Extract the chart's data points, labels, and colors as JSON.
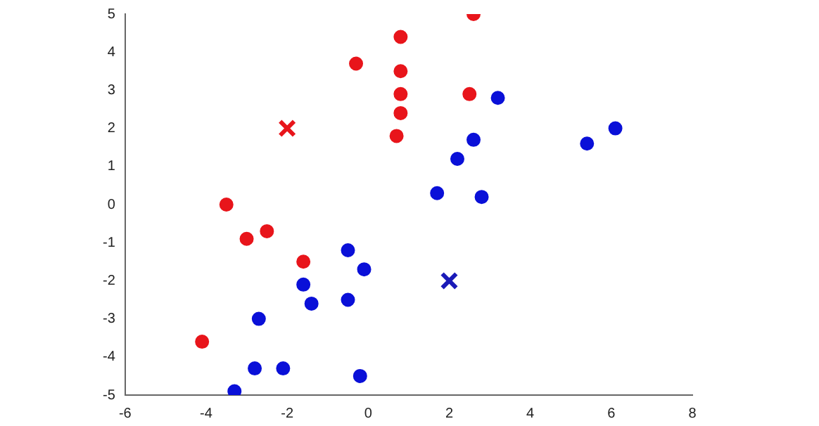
{
  "chart_data": {
    "type": "scatter",
    "xlim": [
      -6,
      8
    ],
    "xticks": [
      -6,
      -4,
      -2,
      0,
      2,
      4,
      6,
      8
    ],
    "ylim": [
      -5,
      5
    ],
    "yticks": [
      -5,
      -4,
      -3,
      -2,
      -1,
      0,
      1,
      2,
      3,
      4,
      5
    ],
    "grid": false,
    "legend": false,
    "series": [
      {
        "color": "#e8151b",
        "marker": "circle",
        "x": [
          2.6,
          0.8,
          -0.3,
          0.8,
          0.8,
          0.8,
          0.7,
          2.5,
          -3.5,
          -3.0,
          -2.5,
          -1.6,
          -4.1
        ],
        "values": [
          5.0,
          4.4,
          3.7,
          3.5,
          2.9,
          2.4,
          1.8,
          2.9,
          0.0,
          -0.9,
          -0.7,
          -1.5,
          -3.6
        ]
      },
      {
        "color": "#0a10d8",
        "marker": "circle",
        "x": [
          3.2,
          6.1,
          5.4,
          2.6,
          2.2,
          1.7,
          2.8,
          -0.5,
          -0.1,
          -1.6,
          -0.5,
          -1.4,
          -2.7,
          -2.8,
          -2.1,
          -0.2,
          -3.3
        ],
        "values": [
          2.8,
          2.0,
          1.6,
          1.7,
          1.2,
          0.3,
          0.2,
          -1.2,
          -1.7,
          -2.1,
          -2.5,
          -2.6,
          -3.0,
          -4.3,
          -4.3,
          -4.5,
          -4.9
        ]
      },
      {
        "color": "#e8151b",
        "marker": "cross",
        "x": [
          -2
        ],
        "values": [
          2
        ]
      },
      {
        "color": "#1a1ab8",
        "marker": "cross",
        "x": [
          2
        ],
        "values": [
          -2
        ]
      }
    ]
  }
}
